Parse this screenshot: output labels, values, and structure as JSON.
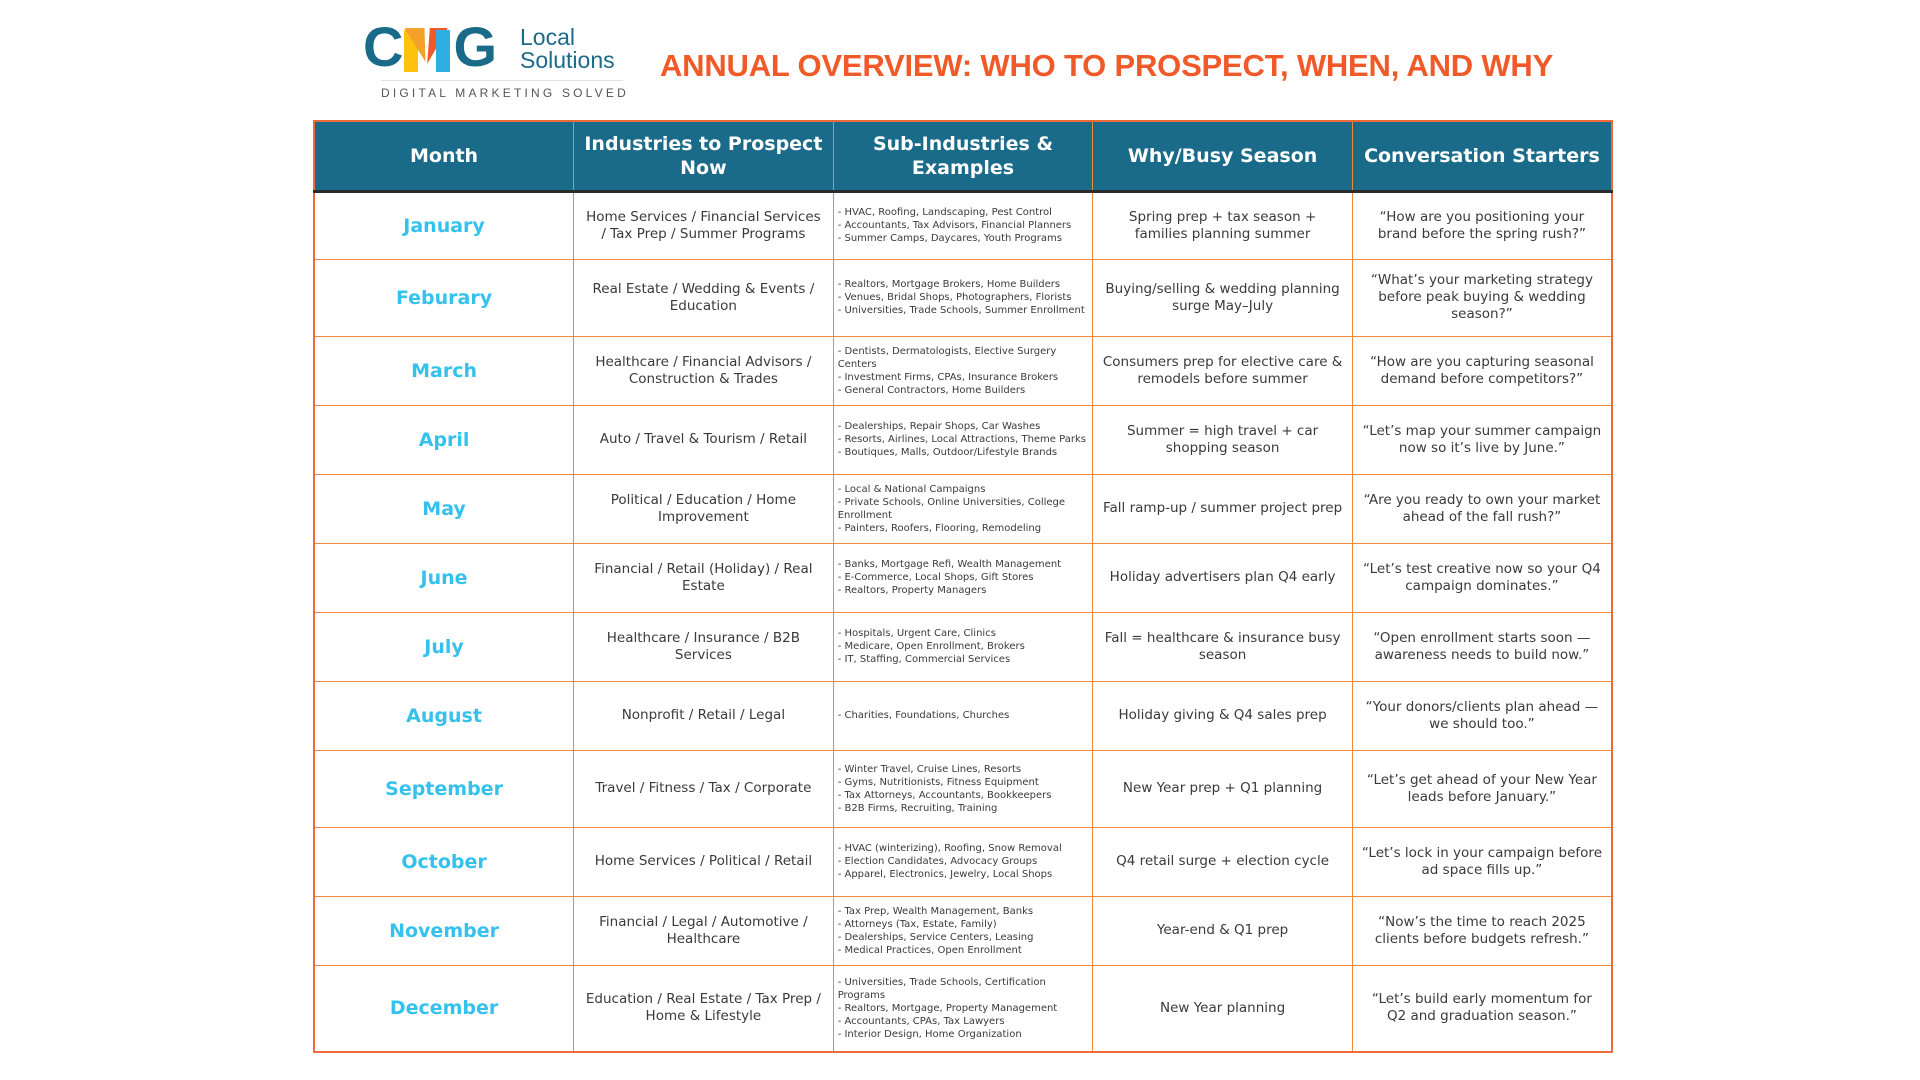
{
  "logo": {
    "wordmark": "CMG",
    "sub_line1": "Local",
    "sub_line2": "Solutions",
    "tagline": "DIGITAL MARKETING SOLVED",
    "colors": {
      "blue": "#1a6a8a",
      "yellow": "#fcc20e",
      "orange": "#f6a02c",
      "red": "#f05a28",
      "light_blue": "#2eaee3"
    }
  },
  "title": "ANNUAL OVERVIEW: WHO TO PROSPECT, WHEN, AND WHY",
  "colors": {
    "title": "#f05a28",
    "header_bg": "#1a6a8a",
    "month_text": "#35c1ee",
    "grid": "#f08a38"
  },
  "table": {
    "headers": [
      "Month",
      "Industries to Prospect Now",
      "Sub-Industries & Examples",
      "Why/Busy Season",
      "Conversation Starters"
    ],
    "rows": [
      {
        "month": "January",
        "industries": "Home Services / Financial Services / Tax Prep / Summer Programs",
        "sub": [
          "- HVAC, Roofing, Landscaping, Pest Control",
          "- Accountants, Tax Advisors, Financial Planners",
          "- Summer Camps, Daycares, Youth Programs"
        ],
        "why": "Spring prep + tax season + families planning summer",
        "starter": "“How are you positioning your brand before the spring rush?”"
      },
      {
        "month": "Feburary",
        "industries": "Real Estate / Wedding & Events / Education",
        "sub": [
          "- Realtors, Mortgage Brokers, Home Builders",
          "- Venues, Bridal Shops, Photographers, Florists",
          "- Universities, Trade Schools, Summer Enrollment"
        ],
        "why": "Buying/selling & wedding planning surge May–July",
        "starter": "“What’s your marketing strategy before peak buying & wedding season?”"
      },
      {
        "month": "March",
        "industries": "Healthcare / Financial Advisors / Construction & Trades",
        "sub": [
          "- Dentists, Dermatologists, Elective Surgery Centers",
          "- Investment Firms, CPAs, Insurance Brokers",
          "- General Contractors, Home Builders"
        ],
        "why": "Consumers prep for elective care & remodels before summer",
        "starter": "“How are you capturing seasonal demand before competitors?”"
      },
      {
        "month": "April",
        "industries": "Auto / Travel & Tourism / Retail",
        "sub": [
          "- Dealerships, Repair Shops, Car Washes",
          "- Resorts, Airlines, Local Attractions, Theme Parks",
          "- Boutiques, Malls, Outdoor/Lifestyle Brands"
        ],
        "why": "Summer = high travel + car shopping season",
        "starter": "“Let’s map your summer campaign now so it’s live by June.”"
      },
      {
        "month": "May",
        "industries": "Political / Education / Home Improvement",
        "sub": [
          "- Local & National Campaigns",
          "- Private Schools, Online Universities, College Enrollment",
          "- Painters, Roofers, Flooring, Remodeling"
        ],
        "why": "Fall ramp-up / summer project prep",
        "starter": "“Are you ready to own your market ahead of the fall rush?”"
      },
      {
        "month": "June",
        "industries": "Financial / Retail (Holiday) / Real Estate",
        "sub": [
          "- Banks, Mortgage Refi, Wealth Management",
          "- E-Commerce, Local Shops, Gift Stores",
          "- Realtors, Property Managers"
        ],
        "why": "Holiday advertisers plan Q4 early",
        "starter": "“Let’s test creative now so your Q4 campaign dominates.”"
      },
      {
        "month": "July",
        "industries": "Healthcare / Insurance / B2B Services",
        "sub": [
          "- Hospitals, Urgent Care, Clinics",
          "- Medicare, Open Enrollment, Brokers",
          "- IT, Staffing, Commercial Services"
        ],
        "why": "Fall = healthcare & insurance busy season",
        "starter": "“Open enrollment starts soon — awareness needs to build now.”"
      },
      {
        "month": "August",
        "industries": "Nonprofit / Retail / Legal",
        "sub": [
          "- Charities, Foundations, Churches"
        ],
        "why": "Holiday giving & Q4 sales prep",
        "starter": "“Your donors/clients plan ahead — we should too.”"
      },
      {
        "month": "September",
        "industries": "Travel / Fitness / Tax / Corporate",
        "sub": [
          "- Winter Travel, Cruise Lines, Resorts",
          "- Gyms, Nutritionists, Fitness Equipment",
          "- Tax Attorneys, Accountants, Bookkeepers",
          "- B2B Firms, Recruiting, Training"
        ],
        "why": "New Year prep + Q1 planning",
        "starter": "“Let’s get ahead of your New Year leads before January.”"
      },
      {
        "month": "October",
        "industries": "Home Services / Political / Retail",
        "sub": [
          "- HVAC (winterizing), Roofing, Snow Removal",
          "- Election Candidates, Advocacy Groups",
          "- Apparel, Electronics, Jewelry, Local Shops"
        ],
        "why": "Q4 retail surge + election cycle",
        "starter": "“Let’s lock in your campaign before ad space fills up.”"
      },
      {
        "month": "November",
        "industries": "Financial / Legal / Automotive / Healthcare",
        "sub": [
          "- Tax Prep, Wealth Management, Banks",
          "- Attorneys (Tax, Estate, Family)",
          "- Dealerships, Service Centers, Leasing",
          "- Medical Practices, Open Enrollment"
        ],
        "why": "Year-end & Q1 prep",
        "starter": "“Now’s the time to reach 2025 clients before budgets refresh.”"
      },
      {
        "month": "December",
        "industries": "Education / Real Estate / Tax Prep /  Home & Lifestyle",
        "sub": [
          "- Universities, Trade Schools, Certification Programs",
          "- Realtors, Mortgage, Property Management",
          "- Accountants, CPAs, Tax Lawyers",
          "- Interior Design, Home Organization"
        ],
        "why": "New Year planning",
        "starter": "“Let’s build early momentum for Q2 and graduation season.”"
      }
    ]
  }
}
